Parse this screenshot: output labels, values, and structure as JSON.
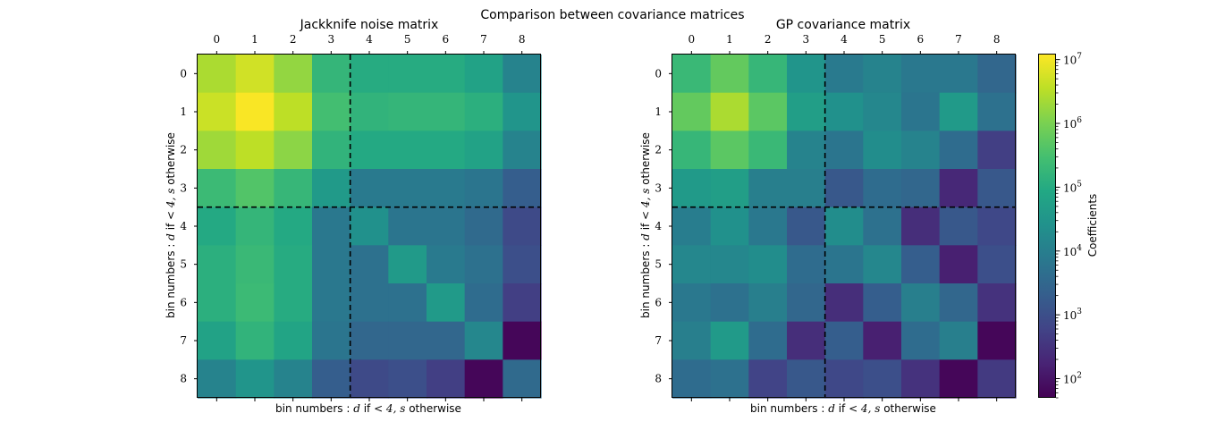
{
  "suptitle": "Comparison between covariance matrices",
  "colorbar": {
    "label": "Coefficients",
    "scale": "log",
    "range": [
      50,
      12000000
    ],
    "ticks": [
      {
        "value": 100,
        "base": "10",
        "exp": "2"
      },
      {
        "value": 1000,
        "base": "10",
        "exp": "3"
      },
      {
        "value": 10000,
        "base": "10",
        "exp": "4"
      },
      {
        "value": 100000,
        "base": "10",
        "exp": "5"
      },
      {
        "value": 1000000,
        "base": "10",
        "exp": "6"
      },
      {
        "value": 10000000,
        "base": "10",
        "exp": "7"
      }
    ],
    "colormap": "viridis"
  },
  "axis_label": {
    "prefix": "bin numbers : ",
    "var1": "d",
    "mid": " if ",
    "math": "< 4, ",
    "var2": "s",
    "suffix": " otherwise"
  },
  "chart_data": [
    {
      "type": "heatmap",
      "title": "Jackknife noise matrix",
      "x_ticks": [
        "0",
        "1",
        "2",
        "3",
        "4",
        "5",
        "6",
        "7",
        "8"
      ],
      "y_ticks": [
        "0",
        "1",
        "2",
        "3",
        "4",
        "5",
        "6",
        "7",
        "8"
      ],
      "x_tick_position": "top",
      "divider_after_index": 3,
      "divider_style": "dashed black",
      "value_scale": "log",
      "values": [
        [
          2500000,
          5000000,
          1600000,
          170000,
          100000,
          100000,
          100000,
          60000,
          12000
        ],
        [
          4500000,
          11000000,
          3500000,
          280000,
          150000,
          170000,
          170000,
          120000,
          30000
        ],
        [
          2000000,
          3500000,
          1400000,
          150000,
          90000,
          90000,
          90000,
          60000,
          12000
        ],
        [
          220000,
          400000,
          180000,
          40000,
          8000,
          8000,
          8000,
          6000,
          2000
        ],
        [
          90000,
          170000,
          90000,
          7000,
          25000,
          6000,
          6000,
          3500,
          800
        ],
        [
          120000,
          200000,
          100000,
          7000,
          5000,
          40000,
          8000,
          5000,
          1000
        ],
        [
          120000,
          220000,
          100000,
          7000,
          5000,
          5000,
          40000,
          4000,
          500
        ],
        [
          60000,
          150000,
          70000,
          6000,
          3000,
          3000,
          3000,
          15000,
          60
        ],
        [
          12000,
          30000,
          12000,
          2000,
          800,
          1000,
          500,
          60,
          3500
        ]
      ]
    },
    {
      "type": "heatmap",
      "title": "GP covariance matrix",
      "x_ticks": [
        "0",
        "1",
        "2",
        "3",
        "4",
        "5",
        "6",
        "7",
        "8"
      ],
      "y_ticks": [
        "0",
        "1",
        "2",
        "3",
        "4",
        "5",
        "6",
        "7",
        "8"
      ],
      "x_tick_position": "top",
      "divider_after_index": 3,
      "divider_style": "dashed black",
      "value_scale": "log",
      "values": [
        [
          200000,
          600000,
          180000,
          30000,
          8000,
          12000,
          7000,
          7000,
          3000
        ],
        [
          600000,
          2500000,
          500000,
          50000,
          25000,
          15000,
          6000,
          40000,
          5000
        ],
        [
          180000,
          500000,
          200000,
          12000,
          6000,
          20000,
          12000,
          4000,
          500
        ],
        [
          40000,
          50000,
          10000,
          10000,
          1500,
          4000,
          3000,
          200,
          1500
        ],
        [
          9000,
          25000,
          7000,
          1500,
          20000,
          5000,
          250,
          1500,
          700
        ],
        [
          15000,
          15000,
          20000,
          4000,
          6000,
          15000,
          2000,
          150,
          1000
        ],
        [
          7000,
          5000,
          10000,
          3000,
          250,
          2000,
          10000,
          3000,
          300
        ],
        [
          10000,
          40000,
          4000,
          250,
          2000,
          150,
          4000,
          10000,
          60
        ],
        [
          4000,
          5000,
          600,
          1500,
          700,
          1000,
          300,
          60,
          400
        ]
      ]
    }
  ]
}
